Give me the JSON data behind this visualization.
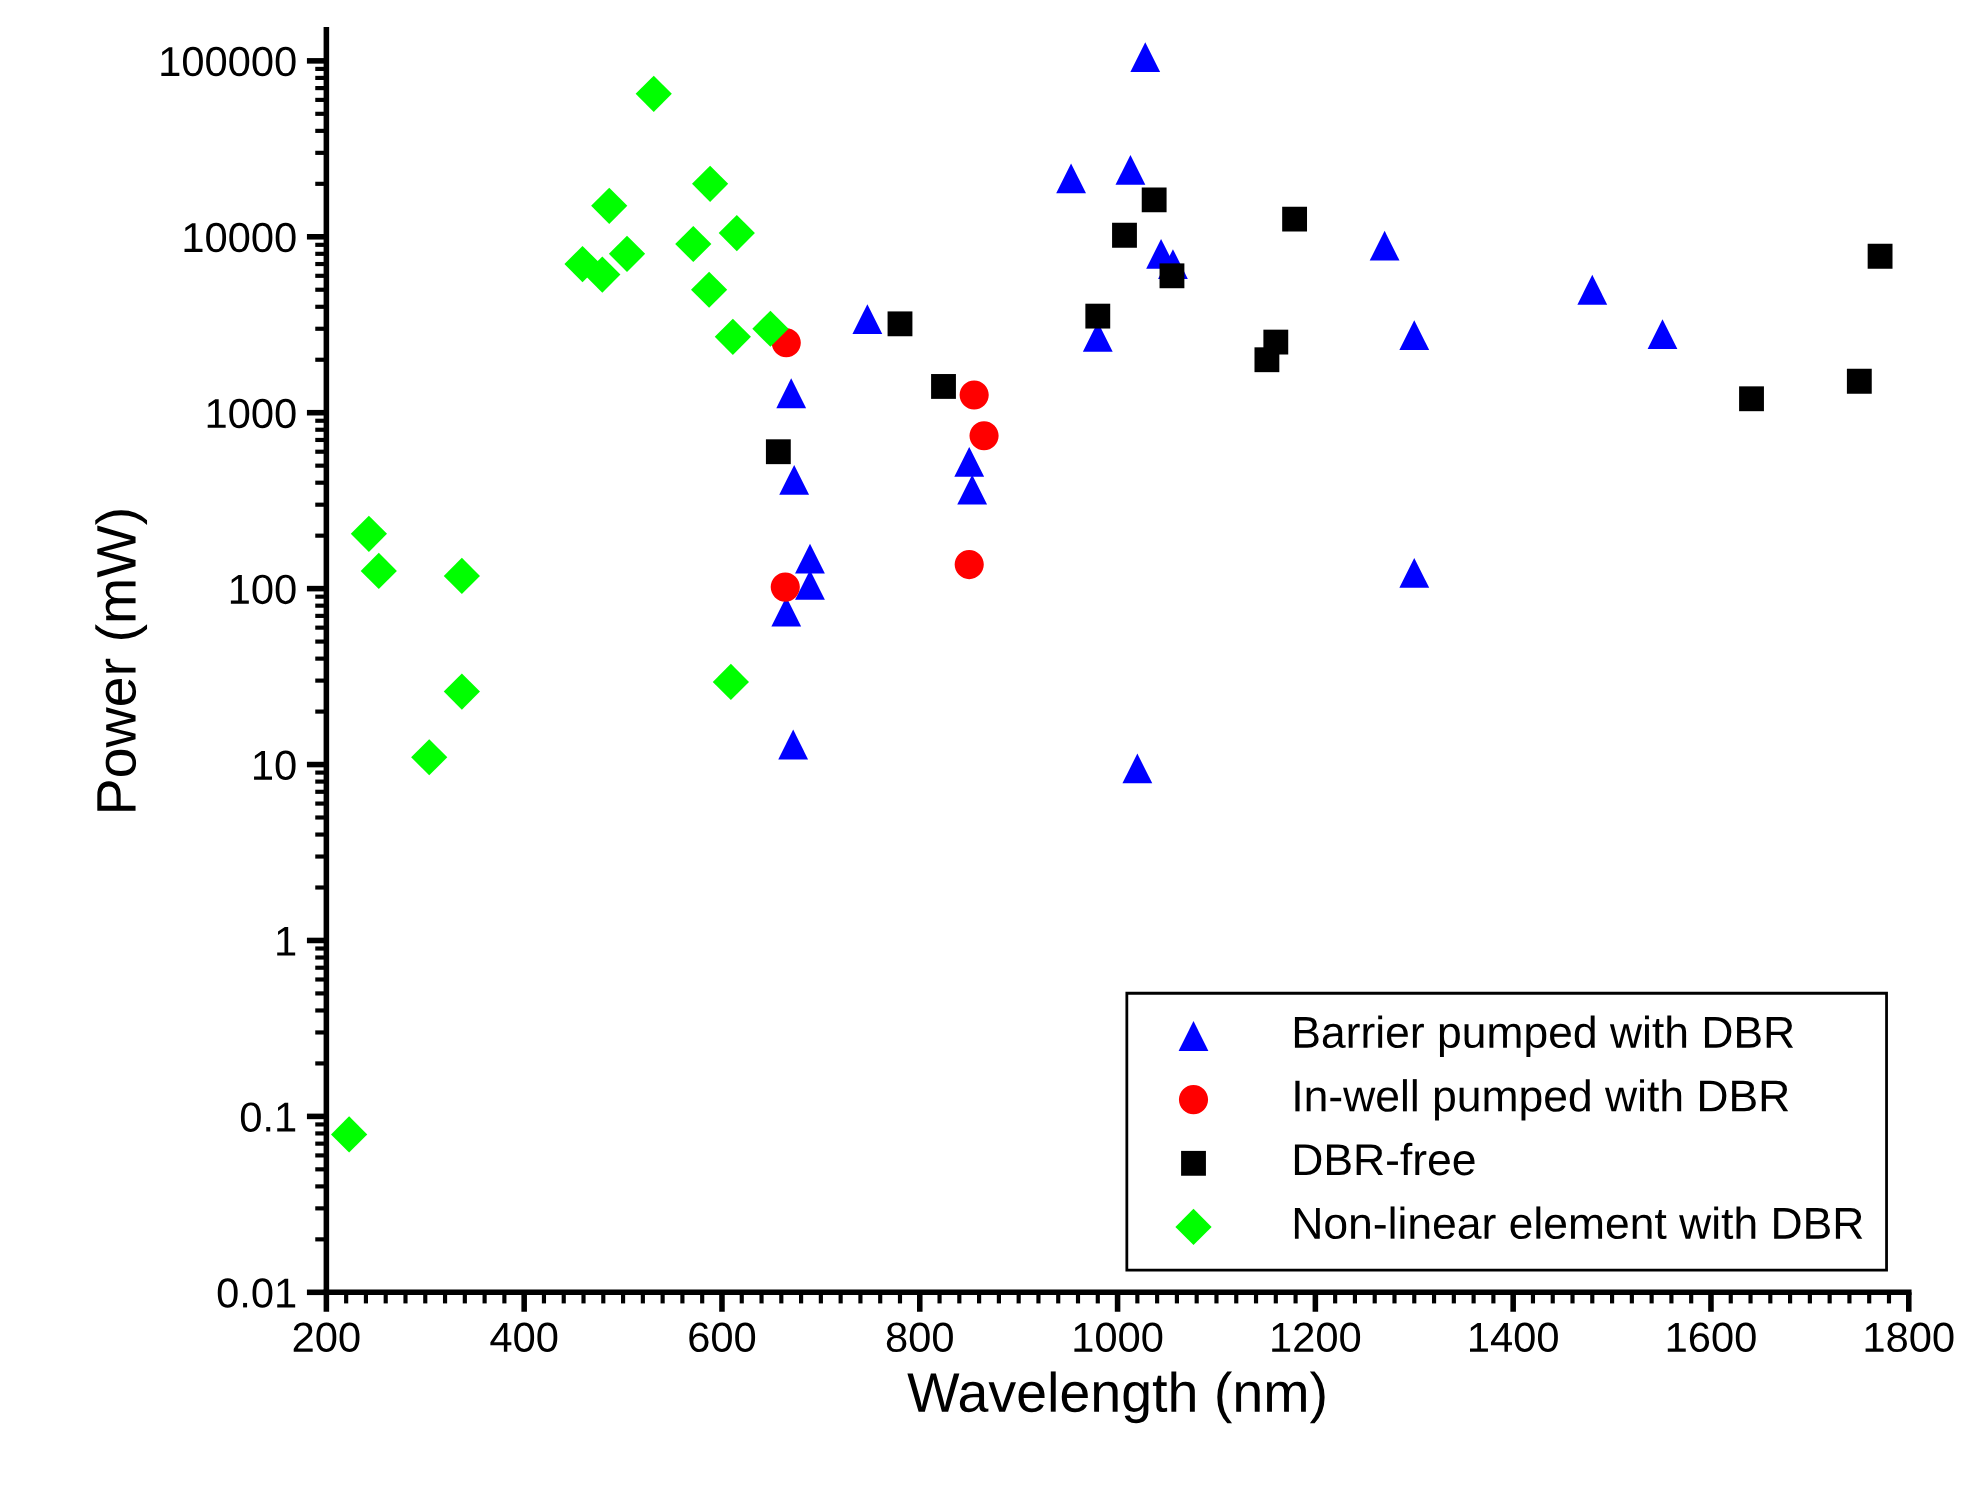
{
  "chart_data": {
    "type": "scatter",
    "xlabel": "Wavelength (nm)",
    "ylabel": "Power (mW)",
    "log": "y",
    "xlim": [
      200,
      1800
    ],
    "xticks": [
      200,
      400,
      600,
      800,
      1000,
      1200,
      1400,
      1600,
      1800
    ],
    "ylim": [
      0.01,
      150000
    ],
    "yticks": [
      0.01,
      0.1,
      1,
      10,
      100,
      1000,
      10000,
      100000
    ],
    "grid": false,
    "legend": "bottom right",
    "series": [
      {
        "name": "Barrier pumped with DBR",
        "color": "#0000ff",
        "marker": "triangle",
        "x": [
          670,
          673,
          689,
          689,
          665,
          672,
          747,
          1028,
          953,
          1013,
          1044,
          1056,
          980,
          850,
          853,
          1020,
          1270,
          1300,
          1300,
          1480,
          1551
        ],
        "values": [
          1290,
          415,
          148,
          105,
          74,
          13,
          3400,
          105000,
          21500,
          24000,
          8000,
          7000,
          2700,
          525,
          365,
          9.5,
          8900,
          2760,
          123,
          5000,
          2800
        ]
      },
      {
        "name": "In-well pumped with DBR",
        "color": "#ff0000",
        "marker": "circle",
        "x": [
          665,
          664,
          855,
          865,
          850
        ],
        "values": [
          2500,
          102,
          1260,
          740,
          137
        ]
      },
      {
        "name": "DBR-free",
        "color": "#000000",
        "marker": "square",
        "x": [
          657,
          780,
          824,
          1037,
          1007,
          1055,
          980,
          1179,
          1151,
          1160,
          1641,
          1750,
          1771
        ],
        "values": [
          600,
          3200,
          1410,
          16200,
          10200,
          6000,
          3540,
          12600,
          2000,
          2520,
          1200,
          1510,
          7750
        ]
      },
      {
        "name": "Non-linear element with DBR",
        "color": "#00ff00",
        "marker": "diamond",
        "x": [
          531,
          588,
          615,
          571,
          486,
          504,
          459,
          479,
          587,
          611,
          649,
          243,
          253,
          337,
          337,
          304,
          609,
          223
        ],
        "values": [
          65000,
          20000,
          10500,
          9100,
          15000,
          8000,
          7000,
          6100,
          5000,
          2700,
          3000,
          205,
          126,
          118,
          26,
          11,
          29.5,
          0.079
        ]
      }
    ]
  }
}
